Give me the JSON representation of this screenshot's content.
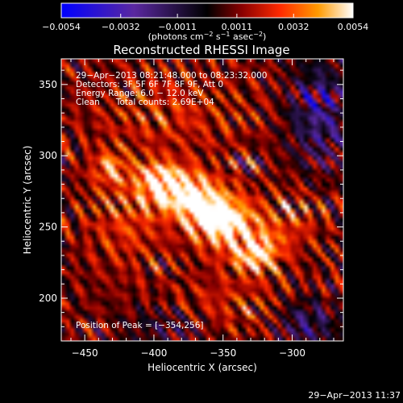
{
  "chart_data": {
    "type": "heatmap",
    "title": "Reconstructed RHESSI Image",
    "xlabel": "Heliocentric X (arcsec)",
    "ylabel": "Heliocentric Y (arcsec)",
    "xlim": [
      -467,
      -263
    ],
    "ylim": [
      170,
      368
    ],
    "x_ticks": [
      -450,
      -400,
      -350,
      -300
    ],
    "x_tick_labels": [
      "−450",
      "−400",
      "−350",
      "−300"
    ],
    "y_ticks": [
      200,
      250,
      300,
      350
    ],
    "y_tick_labels": [
      "200",
      "250",
      "300",
      "350"
    ],
    "colorbar": {
      "range": [
        -0.0054,
        0.0054
      ],
      "ticks": [
        -0.0054,
        -0.0032,
        -0.0011,
        0.0011,
        0.0032,
        0.0054
      ],
      "tick_labels": [
        "−0.0054",
        "−0.0032",
        "−0.0011",
        "0.0011",
        "0.0032",
        "0.0054"
      ],
      "units_prefix": "(photons cm",
      "units_exp1": "−2",
      "units_mid": " s",
      "units_exp2": "−1",
      "units_mid2": " asec",
      "units_exp3": "−2",
      "units_suffix": ")"
    },
    "annotations": [
      "29−Apr−2013 08:21:48.000 to 08:23:32.000",
      "Detectors: 3F 5F 6F 7F 8F 9F, Att 0",
      "Energy Range: 6.0 − 12.0 keV",
      "Clean      Total counts: 2.69E+04"
    ],
    "peak_label": "Position of Peak = [−354,256]",
    "peak": [
      -354,
      256
    ],
    "sources": [
      {
        "x": -354,
        "y": 256,
        "sx": 14,
        "sy": 10,
        "amp": 0.0056
      },
      {
        "x": -375,
        "y": 273,
        "sx": 18,
        "sy": 11,
        "amp": 0.0045
      },
      {
        "x": -395,
        "y": 283,
        "sx": 12,
        "sy": 9,
        "amp": 0.0037
      },
      {
        "x": -326,
        "y": 231,
        "sx": 11,
        "sy": 9,
        "amp": 0.004
      },
      {
        "x": -340,
        "y": 246,
        "sx": 20,
        "sy": 14,
        "amp": 0.002
      },
      {
        "x": -432,
        "y": 292,
        "sx": 8,
        "sy": 8,
        "amp": 0.0026
      },
      {
        "x": -420,
        "y": 255,
        "sx": 20,
        "sy": 25,
        "amp": 0.0016
      },
      {
        "x": -300,
        "y": 255,
        "sx": 15,
        "sy": 15,
        "amp": 0.0014
      },
      {
        "x": -345,
        "y": 195,
        "sx": 30,
        "sy": 15,
        "amp": 0.0012
      },
      {
        "x": -390,
        "y": 330,
        "sx": 40,
        "sy": 20,
        "amp": 0.0013
      },
      {
        "x": -280,
        "y": 330,
        "sx": 15,
        "sy": 25,
        "amp": -0.003
      },
      {
        "x": -290,
        "y": 182,
        "sx": 15,
        "sy": 12,
        "amp": -0.0025
      },
      {
        "x": -390,
        "y": 180,
        "sx": 20,
        "sy": 10,
        "amp": -0.0015
      }
    ],
    "colors": {
      "background": "#000000",
      "colormap": [
        "#0000ff",
        "#5a28a0",
        "#000000",
        "#8a0000",
        "#ff2a00",
        "#ff9a00",
        "#ffffff"
      ]
    }
  },
  "timestamp": "29−Apr−2013 11:37"
}
